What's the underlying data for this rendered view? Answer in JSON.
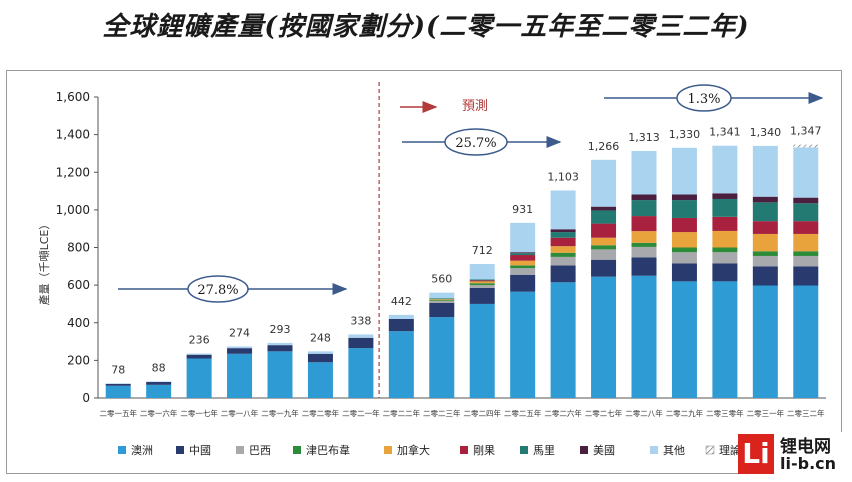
{
  "title": "全球鋰礦產量(按國家劃分)(二零一五年至二零三二年)",
  "chart_data": {
    "type": "bar",
    "stacked": true,
    "ylabel": "產量（千噸LCE）",
    "ylim": [
      0,
      1600
    ],
    "yticks": [
      "0",
      "200",
      "400",
      "600",
      "800",
      "1,000",
      "1,200",
      "1,400",
      "1,600"
    ],
    "categories": [
      "二零一五年",
      "二零一六年",
      "二零一七年",
      "二零一八年",
      "二零一九年",
      "二零二零年",
      "二零二一年",
      "二零二二年",
      "二零二三年",
      "二零二四年",
      "二零二五年",
      "二零二六年",
      "二零二七年",
      "二零二八年",
      "二零二九年",
      "二零三零年",
      "二零三一年",
      "二零三二年"
    ],
    "totals": [
      "78",
      "88",
      "236",
      "274",
      "293",
      "248",
      "338",
      "442",
      "560",
      "712",
      "931",
      "1,103",
      "1,266",
      "1,313",
      "1,330",
      "1,341",
      "1,340",
      "1,347"
    ],
    "series": [
      {
        "name": "澳洲",
        "color": "#2e9bd4",
        "values": [
          65,
          70,
          210,
          235,
          248,
          190,
          265,
          355,
          430,
          500,
          565,
          615,
          645,
          650,
          620,
          620,
          598,
          598
        ]
      },
      {
        "name": "中國",
        "color": "#283a6e",
        "values": [
          10,
          15,
          20,
          30,
          33,
          45,
          55,
          65,
          75,
          85,
          90,
          90,
          90,
          98,
          95,
          95,
          102,
          102
        ]
      },
      {
        "name": "巴西",
        "color": "#a7a9ac",
        "values": [
          0,
          0,
          0,
          0,
          0,
          0,
          0,
          0,
          10,
          15,
          35,
          45,
          55,
          55,
          60,
          60,
          55,
          55
        ]
      },
      {
        "name": "津巴布韋",
        "color": "#2e8b3a",
        "values": [
          0,
          0,
          0,
          0,
          0,
          0,
          0,
          0,
          5,
          10,
          15,
          22,
          22,
          22,
          25,
          25,
          25,
          25
        ]
      },
      {
        "name": "加拿大",
        "color": "#e8a33d",
        "values": [
          0,
          0,
          0,
          0,
          0,
          0,
          0,
          0,
          5,
          10,
          25,
          35,
          40,
          62,
          82,
          88,
          92,
          92
        ]
      },
      {
        "name": "剛果",
        "color": "#a8223f",
        "values": [
          0,
          0,
          0,
          0,
          0,
          0,
          0,
          0,
          0,
          5,
          30,
          45,
          75,
          80,
          75,
          75,
          68,
          68
        ]
      },
      {
        "name": "馬里",
        "color": "#237a72",
        "values": [
          0,
          0,
          0,
          0,
          0,
          0,
          0,
          0,
          5,
          5,
          10,
          30,
          70,
          85,
          95,
          95,
          100,
          95
        ]
      },
      {
        "name": "美國",
        "color": "#4b1f3f",
        "values": [
          0,
          0,
          0,
          0,
          0,
          0,
          0,
          0,
          0,
          0,
          5,
          15,
          20,
          30,
          30,
          30,
          30,
          30
        ]
      },
      {
        "name": "其他",
        "color": "#a9d3ee",
        "values": [
          3,
          3,
          6,
          9,
          12,
          13,
          18,
          22,
          30,
          82,
          156,
          206,
          249,
          231,
          248,
          253,
          270,
          267
        ]
      }
    ],
    "theoretical_label": "理論新增",
    "theoretical_values": [
      0,
      0,
      0,
      0,
      0,
      0,
      0,
      0,
      0,
      0,
      0,
      0,
      0,
      0,
      0,
      0,
      0,
      15
    ],
    "forecast_label": "預測",
    "growth_rates": [
      "27.8%",
      "25.7%",
      "1.3%"
    ]
  },
  "brand": {
    "logo_letter": "Li",
    "name": "锂电网",
    "url": "li-b.cn"
  },
  "colors": {
    "divider": "#b23a3a",
    "arrow": "#3c5a8c",
    "forecast_arrow": "#b23a3a"
  }
}
